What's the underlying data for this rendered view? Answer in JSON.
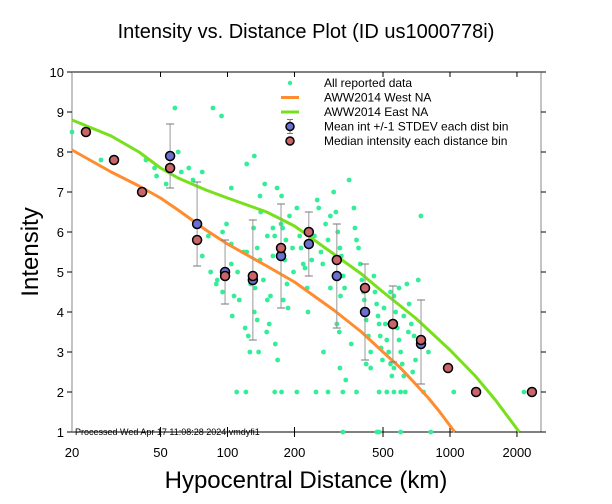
{
  "chart_data": {
    "type": "scatter",
    "title": "Intensity vs. Distance Plot (ID us1000778i)",
    "xlabel": "Hypocentral Distance (km)",
    "ylabel": "Intensity",
    "xscale": "log",
    "xlim": [
      20,
      2565
    ],
    "ylim": [
      1,
      10
    ],
    "xticks": [
      20,
      50,
      100,
      200,
      500,
      1000,
      2000
    ],
    "xtick_labels": [
      "20",
      "50",
      "100",
      "200",
      "500",
      "1000",
      "2000"
    ],
    "yticks": [
      1,
      2,
      3,
      4,
      5,
      6,
      7,
      8,
      9,
      10
    ],
    "ytick_labels": [
      "1",
      "2",
      "3",
      "4",
      "5",
      "6",
      "7",
      "8",
      "9",
      "10"
    ],
    "grid": false,
    "legend_position": "top-right",
    "footnote": "Processed Wed Apr 17 11:08:28 2024 vmdyfi1",
    "colors": {
      "reported": "#33ee99",
      "west": "#ff8c2e",
      "east": "#77e01a",
      "mean": "#6a6fd0",
      "median": "#c8646a",
      "errorbar": "#999999"
    },
    "legend": [
      {
        "label": "All reported data",
        "kind": "dot"
      },
      {
        "label": "AWW2014 West NA",
        "kind": "west"
      },
      {
        "label": "AWW2014 East NA",
        "kind": "east"
      },
      {
        "label": "Mean int +/-1 STDEV each dist bin",
        "kind": "mean"
      },
      {
        "label": "Median intensity each distance bin",
        "kind": "median"
      }
    ],
    "series": [
      {
        "name": "AWW2014 West NA",
        "type": "line",
        "x": [
          20,
          30,
          40,
          50,
          60,
          80,
          100,
          150,
          200,
          300,
          400,
          500,
          600,
          700,
          800,
          900,
          1050
        ],
        "y": [
          8.05,
          7.5,
          7.15,
          6.85,
          6.55,
          6.05,
          5.7,
          5.15,
          4.75,
          4.05,
          3.5,
          3.0,
          2.6,
          2.2,
          1.85,
          1.5,
          1.0
        ]
      },
      {
        "name": "AWW2014 East NA",
        "type": "line",
        "x": [
          20,
          30,
          40,
          50,
          60,
          80,
          100,
          150,
          200,
          300,
          400,
          500,
          700,
          1000,
          1300,
          1600,
          2050
        ],
        "y": [
          8.8,
          8.4,
          8.0,
          7.6,
          7.35,
          7.05,
          6.85,
          6.5,
          6.15,
          5.45,
          4.95,
          4.5,
          3.85,
          3.05,
          2.4,
          1.8,
          1.0
        ]
      },
      {
        "name": "Mean int +/-1 STDEV each dist bin",
        "type": "errorbar",
        "x": [
          55.2,
          73,
          97.5,
          130,
          174,
          232,
          310,
          415,
          554,
          741
        ],
        "y": [
          7.9,
          6.2,
          5.0,
          4.8,
          5.4,
          5.7,
          4.9,
          4.0,
          3.7,
          3.2
        ],
        "upper": [
          8.7,
          7.25,
          5.8,
          6.3,
          6.7,
          6.5,
          6.2,
          5.2,
          4.65,
          4.3
        ],
        "lower": [
          7.1,
          5.15,
          4.2,
          3.3,
          4.1,
          4.9,
          3.6,
          2.8,
          2.75,
          2.2
        ]
      },
      {
        "name": "Median intensity each distance bin",
        "type": "scatter",
        "x": [
          23.1,
          30.9,
          41.3,
          55.2,
          73,
          97.5,
          130,
          174,
          232,
          310,
          415,
          554,
          741,
          980,
          1310,
          2335
        ],
        "y": [
          8.5,
          7.8,
          7.0,
          7.6,
          5.8,
          4.9,
          4.9,
          5.6,
          6.0,
          5.3,
          4.6,
          3.7,
          3.3,
          2.6,
          2.0,
          2.0
        ]
      },
      {
        "name": "All reported data",
        "type": "scatter",
        "points": [
          [
            20,
            8.5
          ],
          [
            27,
            7.8
          ],
          [
            43,
            7.8
          ],
          [
            48,
            7.4
          ],
          [
            53,
            7.2
          ],
          [
            58,
            9.1
          ],
          [
            62,
            7.5
          ],
          [
            67,
            7.6
          ],
          [
            70,
            7.3
          ],
          [
            77,
            7.5
          ],
          [
            86,
            9.1
          ],
          [
            94,
            8.9
          ],
          [
            104,
            7.1
          ],
          [
            99,
            6.2
          ],
          [
            82,
            5.9
          ],
          [
            77,
            5.4
          ],
          [
            84,
            5.0
          ],
          [
            90,
            4.8
          ],
          [
            89,
            4.7
          ],
          [
            95,
            4.5
          ],
          [
            104,
            5.7
          ],
          [
            104,
            5.2
          ],
          [
            111,
            5.0
          ],
          [
            107,
            4.4
          ],
          [
            113,
            4.3
          ],
          [
            105,
            3.9
          ],
          [
            122,
            7.7
          ],
          [
            132,
            7.9
          ],
          [
            140,
            6.9
          ],
          [
            147,
            7.2
          ],
          [
            141,
            6.5
          ],
          [
            131,
            6.1
          ],
          [
            136,
            5.6
          ],
          [
            140,
            5.3
          ],
          [
            122,
            5.5
          ],
          [
            127,
            4.7
          ],
          [
            133,
            4.6
          ],
          [
            145,
            4.8
          ],
          [
            132,
            4.0
          ],
          [
            136,
            3.8
          ],
          [
            124,
            3.4
          ],
          [
            126,
            3.0
          ],
          [
            120,
            3.6
          ],
          [
            138,
            3.0
          ],
          [
            151,
            4.3
          ],
          [
            150,
            3.5
          ],
          [
            151,
            5.9
          ],
          [
            160,
            6.1
          ],
          [
            163,
            5.9
          ],
          [
            160,
            5.4
          ],
          [
            156,
            4.4
          ],
          [
            154,
            3.7
          ],
          [
            164,
            3.2
          ],
          [
            168,
            2.8
          ],
          [
            174,
            6.2
          ],
          [
            177,
            6.1
          ],
          [
            183,
            5.8
          ],
          [
            178,
            5.5
          ],
          [
            181,
            5.3
          ],
          [
            185,
            4.7
          ],
          [
            178,
            4.3
          ],
          [
            187,
            4.1
          ],
          [
            167,
            7.1
          ],
          [
            175,
            6.9
          ],
          [
            190,
            6.4
          ],
          [
            196,
            5.6
          ],
          [
            198,
            5.0
          ],
          [
            205,
            6.6
          ],
          [
            211,
            5.9
          ],
          [
            214,
            5.6
          ],
          [
            219,
            5.2
          ],
          [
            223,
            5.1
          ],
          [
            228,
            4.6
          ],
          [
            233,
            6.0
          ],
          [
            236,
            5.7
          ],
          [
            239,
            5.3
          ],
          [
            246,
            5.9
          ],
          [
            253,
            6.8
          ],
          [
            257,
            6.6
          ],
          [
            263,
            5.5
          ],
          [
            268,
            5.2
          ],
          [
            276,
            6.2
          ],
          [
            283,
            5.8
          ],
          [
            290,
            6.4
          ],
          [
            300,
            7.0
          ],
          [
            307,
            6.5
          ],
          [
            313,
            6.0
          ],
          [
            320,
            5.6
          ],
          [
            325,
            5.4
          ],
          [
            331,
            4.9
          ],
          [
            336,
            4.6
          ],
          [
            322,
            4.4
          ],
          [
            310,
            3.7
          ],
          [
            318,
            3.5
          ],
          [
            352,
            7.3
          ],
          [
            370,
            6.6
          ],
          [
            374,
            6.1
          ],
          [
            380,
            5.8
          ],
          [
            388,
            5.6
          ],
          [
            395,
            5.2
          ],
          [
            402,
            4.8
          ],
          [
            408,
            4.5
          ],
          [
            412,
            4.3
          ],
          [
            420,
            3.8
          ],
          [
            430,
            3.4
          ],
          [
            440,
            3.0
          ],
          [
            455,
            4.9
          ],
          [
            460,
            4.5
          ],
          [
            468,
            4.2
          ],
          [
            475,
            3.9
          ],
          [
            480,
            3.7
          ],
          [
            486,
            3.4
          ],
          [
            490,
            3.1
          ],
          [
            497,
            2.8
          ],
          [
            505,
            4.1
          ],
          [
            512,
            3.7
          ],
          [
            520,
            3.3
          ],
          [
            530,
            3.0
          ],
          [
            540,
            2.7
          ],
          [
            548,
            2.4
          ],
          [
            560,
            4.4
          ],
          [
            570,
            4.0
          ],
          [
            580,
            3.6
          ],
          [
            590,
            3.3
          ],
          [
            600,
            3.0
          ],
          [
            610,
            2.7
          ],
          [
            620,
            2.4
          ],
          [
            630,
            2.0
          ],
          [
            640,
            4.7
          ],
          [
            655,
            4.2
          ],
          [
            670,
            3.7
          ],
          [
            690,
            3.4
          ],
          [
            720,
            4.8
          ],
          [
            740,
            6.4
          ],
          [
            760,
            2.0
          ],
          [
            800,
            3.0
          ],
          [
            600,
            2.0
          ],
          [
            560,
            2.0
          ],
          [
            520,
            2.0
          ],
          [
            480,
            2.0
          ],
          [
            1040,
            2.0
          ],
          [
            2150,
            2.0
          ],
          [
            380,
            2.0
          ],
          [
            330,
            2.0
          ],
          [
            283,
            2.0
          ],
          [
            250,
            2.0
          ],
          [
            205,
            2.0
          ],
          [
            175,
            2.0
          ],
          [
            163,
            2.0
          ],
          [
            121,
            2.0
          ],
          [
            110,
            2.0
          ],
          [
            330,
            1.0
          ],
          [
            470,
            1.0
          ],
          [
            480,
            1.0
          ],
          [
            600,
            1.0
          ],
          [
            820,
            1.0
          ],
          [
            320,
            2.6
          ],
          [
            340,
            2.3
          ],
          [
            440,
            2.6
          ],
          [
            560,
            2.6
          ],
          [
            60,
            8.0
          ],
          [
            47,
            7.6
          ],
          [
            95,
            6.0
          ],
          [
            118,
            5.5
          ],
          [
            230,
            4.0
          ],
          [
            270,
            3.0
          ],
          [
            290,
            4.6
          ],
          [
            360,
            3.2
          ],
          [
            420,
            2.7
          ],
          [
            650,
            3.5
          ],
          [
            700,
            2.8
          ],
          [
            680,
            2.5
          ],
          [
            620,
            3.9
          ],
          [
            590,
            4.6
          ],
          [
            540,
            4.5
          ]
        ]
      }
    ]
  }
}
